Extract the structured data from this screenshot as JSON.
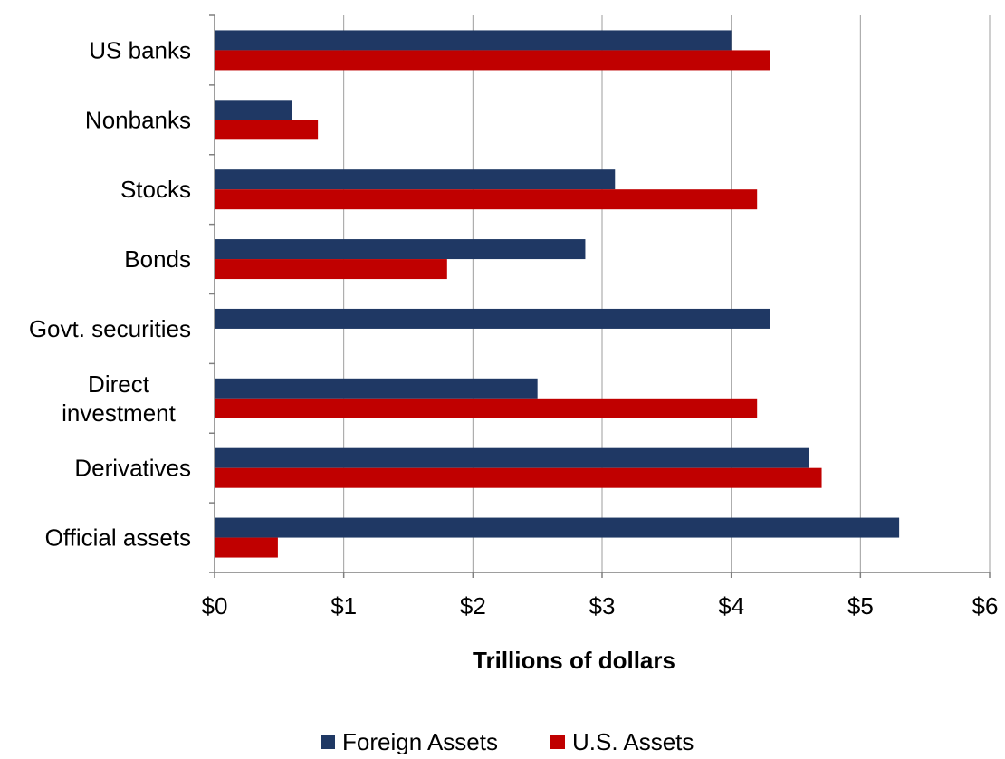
{
  "chart_data": {
    "type": "bar",
    "orientation": "horizontal",
    "categories": [
      "US banks",
      "Nonbanks",
      "Stocks",
      "Bonds",
      "Govt. securities",
      "Direct investment",
      "Derivatives",
      "Official assets"
    ],
    "series": [
      {
        "name": "Foreign Assets",
        "color": "#1f3864",
        "values": [
          4.0,
          0.6,
          3.1,
          2.87,
          4.3,
          2.5,
          4.6,
          5.3
        ]
      },
      {
        "name": "U.S. Assets",
        "color": "#c00000",
        "values": [
          4.3,
          0.8,
          4.2,
          1.8,
          0,
          4.2,
          4.7,
          0.49
        ]
      }
    ],
    "xlabel": "Trillions of dollars",
    "ylabel": "",
    "xlim": [
      0,
      6
    ],
    "x_ticks": [
      0,
      1,
      2,
      3,
      4,
      5,
      6
    ],
    "x_tick_labels": [
      "$0",
      "$1",
      "$2",
      "$3",
      "$4",
      "$5",
      "$6"
    ],
    "grid": "vertical",
    "legend_position": "bottom"
  }
}
